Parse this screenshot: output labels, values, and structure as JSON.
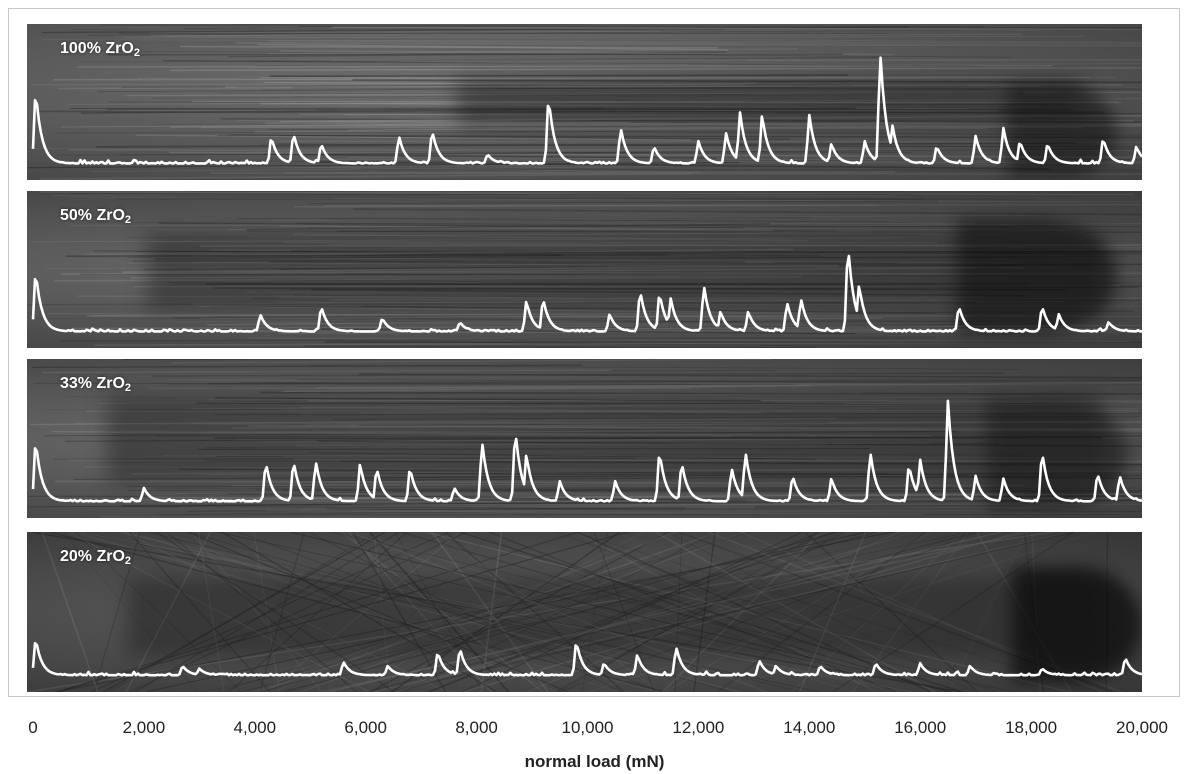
{
  "chart_data": {
    "type": "line",
    "xlabel": "normal load (mN)",
    "xlim": [
      0,
      20000
    ],
    "xticks": [
      0,
      2000,
      4000,
      6000,
      8000,
      10000,
      12000,
      14000,
      16000,
      18000,
      20000
    ],
    "xtick_labels": [
      "0",
      "2,000",
      "4,000",
      "6,000",
      "8,000",
      "10,000",
      "12,000",
      "14,000",
      "16,000",
      "18,000",
      "20,000"
    ],
    "line_color": "#ffffff",
    "series": [
      {
        "name": "100% ZrO",
        "name_sub": "2",
        "baseline": 0.05,
        "peaks": [
          [
            50,
            0.6
          ],
          [
            4300,
            0.25
          ],
          [
            4700,
            0.28
          ],
          [
            5200,
            0.2
          ],
          [
            6600,
            0.26
          ],
          [
            7200,
            0.3
          ],
          [
            8200,
            0.12
          ],
          [
            9300,
            0.55
          ],
          [
            10600,
            0.32
          ],
          [
            11200,
            0.18
          ],
          [
            12000,
            0.22
          ],
          [
            12500,
            0.28
          ],
          [
            12750,
            0.44
          ],
          [
            13150,
            0.42
          ],
          [
            14000,
            0.42
          ],
          [
            14400,
            0.2
          ],
          [
            15000,
            0.22
          ],
          [
            15280,
            0.9
          ],
          [
            15500,
            0.34
          ],
          [
            16300,
            0.18
          ],
          [
            17000,
            0.26
          ],
          [
            17500,
            0.32
          ],
          [
            17800,
            0.22
          ],
          [
            18300,
            0.2
          ],
          [
            19300,
            0.24
          ],
          [
            19900,
            0.18
          ]
        ]
      },
      {
        "name": "50% ZrO",
        "name_sub": "2",
        "baseline": 0.05,
        "peaks": [
          [
            50,
            0.5
          ],
          [
            4100,
            0.18
          ],
          [
            5200,
            0.24
          ],
          [
            6300,
            0.15
          ],
          [
            7700,
            0.12
          ],
          [
            8900,
            0.28
          ],
          [
            9200,
            0.3
          ],
          [
            10400,
            0.18
          ],
          [
            10950,
            0.36
          ],
          [
            11300,
            0.34
          ],
          [
            11500,
            0.3
          ],
          [
            12100,
            0.4
          ],
          [
            12400,
            0.2
          ],
          [
            12900,
            0.2
          ],
          [
            13600,
            0.27
          ],
          [
            13850,
            0.3
          ],
          [
            14700,
            0.7
          ],
          [
            14900,
            0.4
          ],
          [
            16700,
            0.24
          ],
          [
            18200,
            0.24
          ],
          [
            18500,
            0.18
          ],
          [
            19400,
            0.12
          ]
        ]
      },
      {
        "name": "33% ZrO",
        "name_sub": "2",
        "baseline": 0.05,
        "peaks": [
          [
            50,
            0.5
          ],
          [
            2000,
            0.15
          ],
          [
            4200,
            0.34
          ],
          [
            4700,
            0.35
          ],
          [
            5100,
            0.35
          ],
          [
            5900,
            0.33
          ],
          [
            6200,
            0.3
          ],
          [
            6800,
            0.3
          ],
          [
            7600,
            0.15
          ],
          [
            8100,
            0.5
          ],
          [
            8700,
            0.58
          ],
          [
            8900,
            0.4
          ],
          [
            9500,
            0.2
          ],
          [
            10500,
            0.2
          ],
          [
            11300,
            0.42
          ],
          [
            11700,
            0.34
          ],
          [
            12600,
            0.3
          ],
          [
            12850,
            0.42
          ],
          [
            13700,
            0.24
          ],
          [
            14400,
            0.22
          ],
          [
            15100,
            0.42
          ],
          [
            15800,
            0.32
          ],
          [
            16000,
            0.36
          ],
          [
            16500,
            0.8
          ],
          [
            17000,
            0.24
          ],
          [
            17500,
            0.22
          ],
          [
            18200,
            0.42
          ],
          [
            19200,
            0.26
          ],
          [
            19600,
            0.24
          ]
        ]
      },
      {
        "name": "20% ZrO",
        "name_sub": "2",
        "baseline": 0.05,
        "peaks": [
          [
            50,
            0.32
          ],
          [
            2700,
            0.12
          ],
          [
            3000,
            0.1
          ],
          [
            5600,
            0.15
          ],
          [
            6400,
            0.12
          ],
          [
            7300,
            0.22
          ],
          [
            7700,
            0.25
          ],
          [
            9800,
            0.3
          ],
          [
            10300,
            0.14
          ],
          [
            10900,
            0.2
          ],
          [
            11600,
            0.26
          ],
          [
            13100,
            0.16
          ],
          [
            13400,
            0.12
          ],
          [
            14200,
            0.12
          ],
          [
            15200,
            0.14
          ],
          [
            16000,
            0.14
          ],
          [
            16900,
            0.12
          ],
          [
            18200,
            0.1
          ],
          [
            19700,
            0.18
          ]
        ]
      }
    ]
  }
}
